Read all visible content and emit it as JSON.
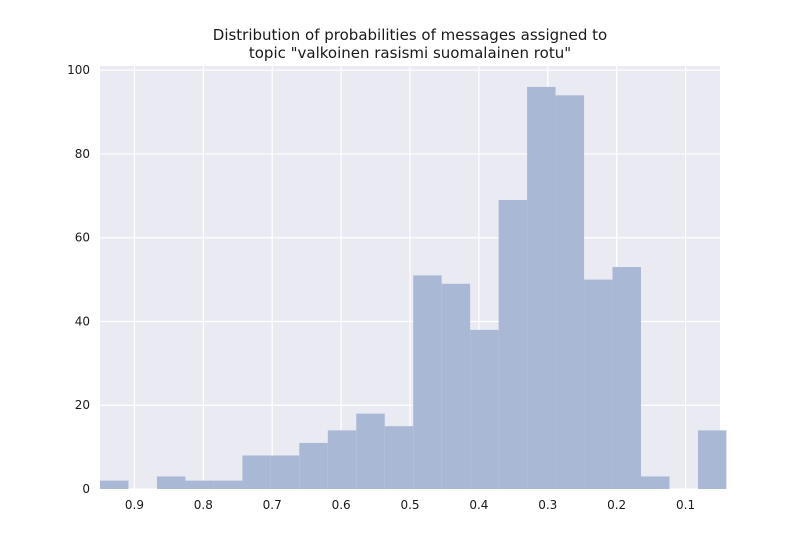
{
  "colors": {
    "plot_background": "#eaeaf2",
    "grid": "#ffffff",
    "bar_fill": "#a9b8d5"
  },
  "chart_data": {
    "type": "bar",
    "title_lines": [
      "Distribution of probabilities of messages assigned to",
      "topic \"valkoinen rasismi suomalainen rotu\""
    ],
    "xlabel": "",
    "ylabel": "",
    "x_axis_inverted": true,
    "xlim": [
      0.95,
      0.05
    ],
    "ylim": [
      0,
      101
    ],
    "grid": true,
    "x_ticks": [
      0.9,
      0.8,
      0.7,
      0.6,
      0.5,
      0.4,
      0.3,
      0.2,
      0.1
    ],
    "x_tick_labels": [
      "0.9",
      "0.8",
      "0.7",
      "0.6",
      "0.5",
      "0.4",
      "0.3",
      "0.2",
      "0.1"
    ],
    "y_ticks": [
      0,
      20,
      40,
      60,
      80,
      100
    ],
    "y_tick_labels": [
      "0",
      "20",
      "40",
      "60",
      "80",
      "100"
    ],
    "bin_edges": [
      0.95,
      0.9087,
      0.8673,
      0.826,
      0.7847,
      0.7433,
      0.702,
      0.6607,
      0.6193,
      0.578,
      0.5367,
      0.4953,
      0.454,
      0.4127,
      0.3713,
      0.33,
      0.2887,
      0.2473,
      0.206,
      0.1647,
      0.1233,
      0.082,
      0.0407
    ],
    "values": [
      2,
      0,
      3,
      2,
      2,
      8,
      8,
      11,
      14,
      18,
      15,
      51,
      49,
      38,
      69,
      96,
      94,
      50,
      53,
      3,
      0,
      14
    ]
  }
}
